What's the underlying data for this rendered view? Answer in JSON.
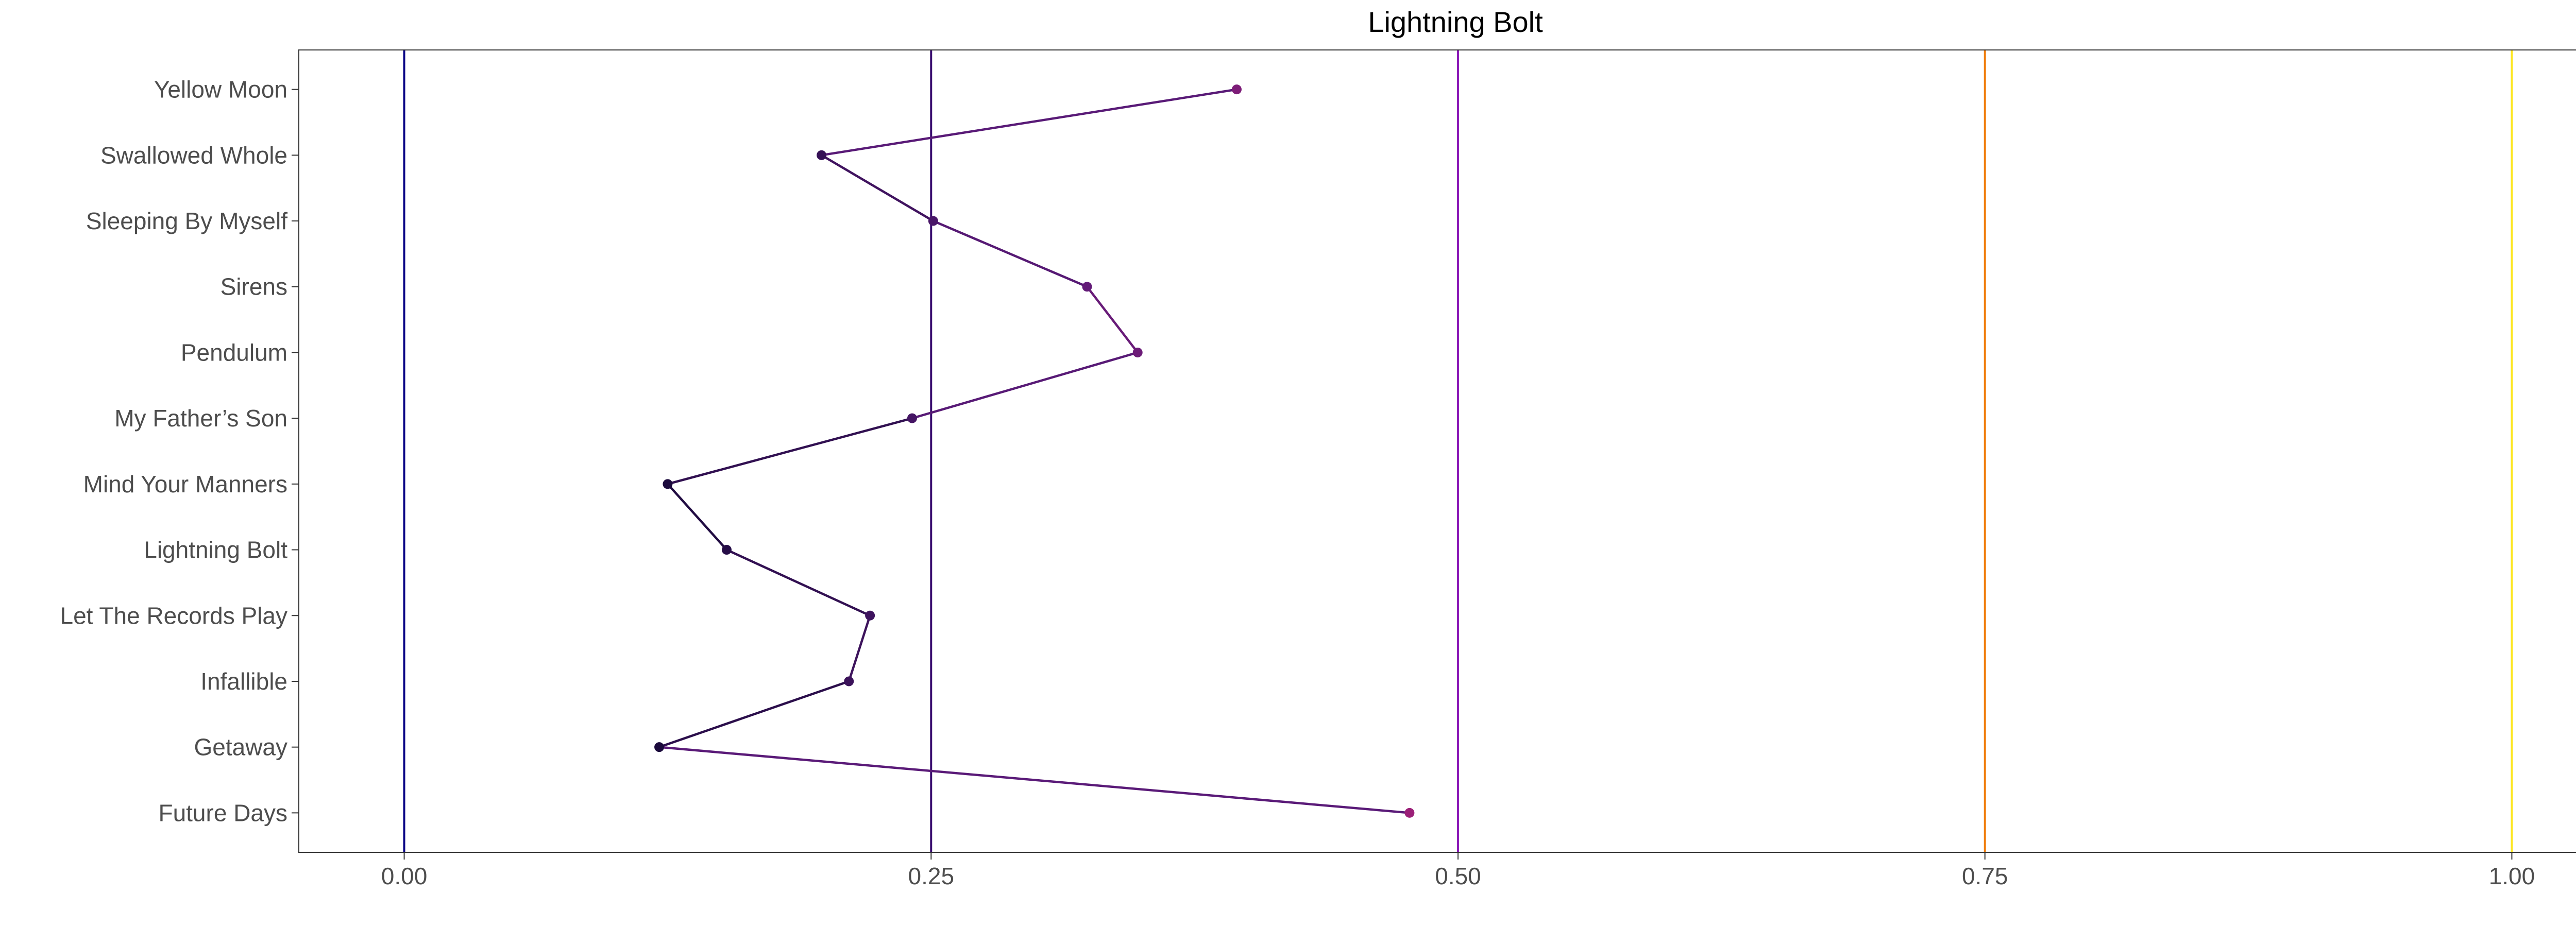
{
  "chart_data": {
    "type": "line",
    "title": "Lightning Bolt",
    "xlabel": "",
    "ylabel": "",
    "xlim": [
      -0.05,
      1.05
    ],
    "x_ticks": [
      0.0,
      0.25,
      0.5,
      0.75,
      1.0
    ],
    "x_tick_labels": [
      "0.00",
      "0.25",
      "0.50",
      "0.75",
      "1.00"
    ],
    "grid": false,
    "legend": "none",
    "categories": [
      "Yellow Moon",
      "Swallowed Whole",
      "Sleeping By Myself",
      "Sirens",
      "Pendulum",
      "My Father’s Son",
      "Mind Your Manners",
      "Lightning Bolt",
      "Let The Records Play",
      "Infallible",
      "Getaway",
      "Future Days"
    ],
    "values": [
      0.395,
      0.198,
      0.251,
      0.324,
      0.348,
      0.241,
      0.125,
      0.153,
      0.221,
      0.211,
      0.121,
      0.477
    ],
    "reference_lines": [
      {
        "x": 0.0,
        "color": "#0d0887"
      },
      {
        "x": 0.25,
        "color": "#3b0f70"
      },
      {
        "x": 0.5,
        "color": "#8c1cb8"
      },
      {
        "x": 0.75,
        "color": "#f07f10"
      },
      {
        "x": 1.0,
        "color": "#fde725"
      }
    ],
    "palette": {
      "low": "#1b0a3c",
      "mid": "#5a1a78",
      "high": "#9b1f78"
    }
  }
}
